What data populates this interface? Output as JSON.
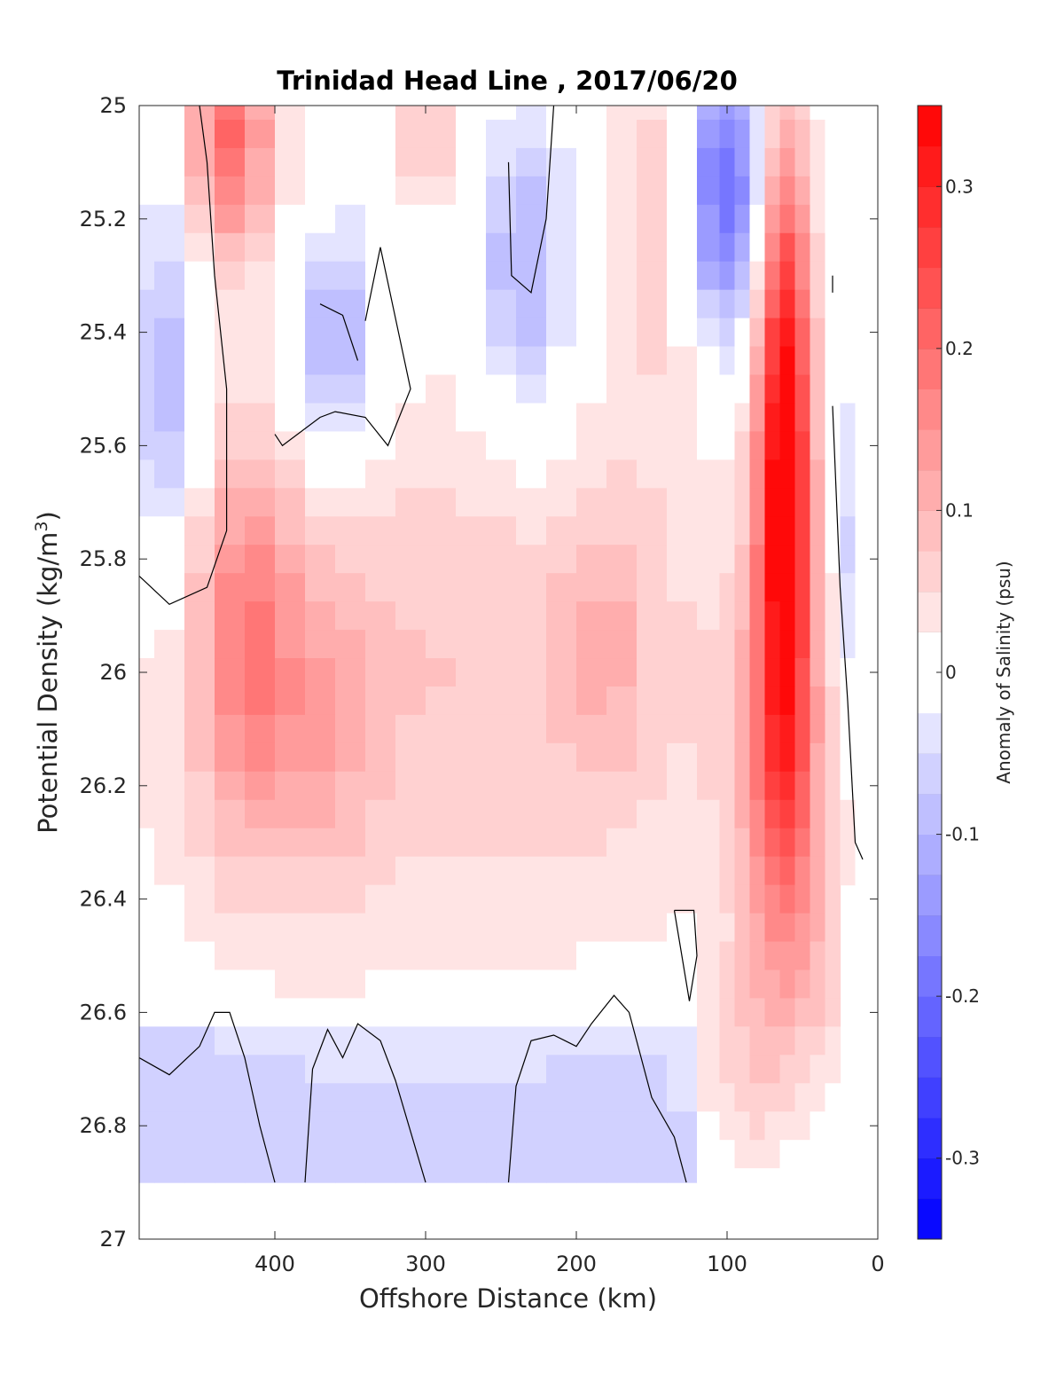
{
  "chart_data": {
    "type": "heatmap",
    "title": "Trinidad Head Line , 2017/06/20",
    "xlabel": "Offshore Distance (km)",
    "ylabel": "Potential Density (kg/m",
    "ylabel_sup": "3",
    "ylabel_close": ")",
    "xlim": [
      490,
      0
    ],
    "ylim": [
      25,
      27
    ],
    "x_reversed": true,
    "y_reversed": true,
    "xticks": [
      400,
      300,
      200,
      100,
      0
    ],
    "xtick_labels": [
      "400",
      "300",
      "200",
      "100",
      "0"
    ],
    "yticks": [
      25,
      25.2,
      25.4,
      25.6,
      25.8,
      26,
      26.2,
      26.4,
      26.6,
      26.8,
      27
    ],
    "ytick_labels": [
      "25",
      "25.2",
      "25.4",
      "25.6",
      "25.8",
      "26",
      "26.2",
      "26.4",
      "26.6",
      "26.8",
      "27"
    ],
    "colorbar": {
      "label": "Anomaly of Salinity (psu)",
      "lim": [
        -0.35,
        0.35
      ],
      "levels": 28,
      "ticks": [
        0.3,
        0.2,
        0.1,
        0,
        -0.1,
        -0.2,
        -0.3
      ],
      "tick_labels": [
        "0.3",
        "0.2",
        "0.1",
        "0",
        "-0.1",
        "-0.2",
        "-0.3"
      ],
      "neg_color": "#0000ff",
      "zero_color": "#ffffff",
      "pos_color": "#ff0000"
    },
    "contour_level": 0,
    "colormap": "blue-white-red",
    "grid": false,
    "anomaly_features": [
      {
        "x": 430,
        "y": 25.05,
        "value": 0.22
      },
      {
        "x": 425,
        "y": 26.15,
        "value": 0.15
      },
      {
        "x": 380,
        "y": 26.2,
        "value": 0.1
      },
      {
        "x": 470,
        "y": 25.5,
        "value": -0.08
      },
      {
        "x": 300,
        "y": 25.1,
        "value": 0.1
      },
      {
        "x": 150,
        "y": 25.1,
        "value": 0.09
      },
      {
        "x": 180,
        "y": 25.9,
        "value": 0.09
      },
      {
        "x": 65,
        "y": 25.75,
        "value": 0.35
      },
      {
        "x": 55,
        "y": 25.4,
        "value": 0.3
      },
      {
        "x": 70,
        "y": 26.1,
        "value": 0.22
      },
      {
        "x": 90,
        "y": 26.75,
        "value": 0.09
      },
      {
        "x": 40,
        "y": 26.5,
        "value": 0.1
      },
      {
        "x": 20,
        "y": 25.65,
        "value": -0.06
      },
      {
        "x": 12,
        "y": 26,
        "value": -0.06
      },
      {
        "x": 350,
        "y": 25.4,
        "value": 0.0
      },
      {
        "x": 230,
        "y": 25.3,
        "value": 0.0
      },
      {
        "x": 250,
        "y": 26.7,
        "value": 0.0
      }
    ]
  }
}
